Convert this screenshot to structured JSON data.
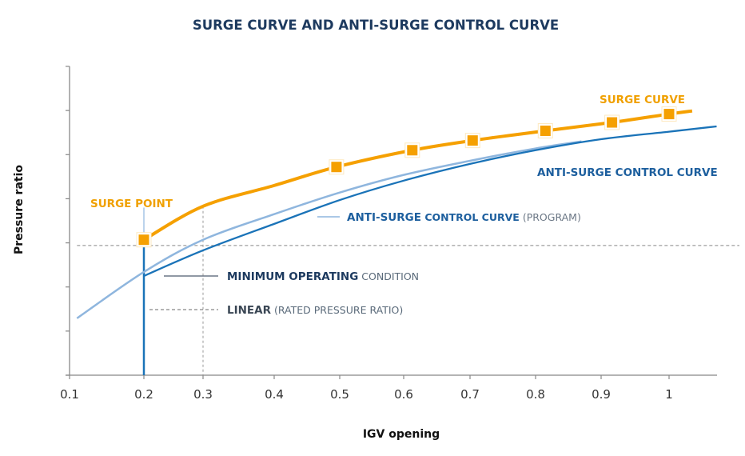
{
  "chart_data": {
    "type": "line",
    "title": "SURGE CURVE AND ANTI-SURGE CONTROL CURVE",
    "xlabel": "IGV opening",
    "ylabel": "Pressure ratio",
    "xticks": [
      "0.1",
      "0.2",
      "0.3",
      "0.4",
      "0.5",
      "0.6",
      "0.7",
      "0.8",
      "0.9",
      "1"
    ],
    "xlim": [
      0.1,
      1.07
    ],
    "ylim": [
      0,
      7
    ],
    "y_tick_count": 8,
    "grid": false,
    "colors": {
      "surge": "#f5a000",
      "anti_surge": "#1a73b8",
      "program": "#8fb6de",
      "label_dark": "#1d4f86",
      "label_grey": "#5a6a7a",
      "axis": "#888888"
    },
    "series": [
      {
        "name": "SURGE CURVE",
        "x": [
          0.2,
          0.3,
          0.4,
          0.495,
          0.613,
          0.704,
          0.815,
          0.916,
          1.0,
          1.034
        ],
        "y": [
          3.07,
          3.83,
          4.3,
          4.72,
          5.1,
          5.32,
          5.54,
          5.73,
          5.92,
          5.99
        ],
        "markers_x": [
          0.2,
          0.495,
          0.613,
          0.704,
          0.815,
          0.916,
          1.0
        ],
        "markers_y": [
          3.07,
          4.72,
          5.1,
          5.32,
          5.54,
          5.73,
          5.92
        ]
      },
      {
        "name": "ANTI-SURGE CONTROL CURVE",
        "x": [
          0.2,
          0.3,
          0.4,
          0.5,
          0.6,
          0.7,
          0.8,
          0.9,
          1.0,
          1.07
        ],
        "y": [
          2.25,
          2.83,
          3.43,
          3.97,
          4.41,
          4.79,
          5.1,
          5.35,
          5.52,
          5.64
        ]
      },
      {
        "name": "ANTI-SURGE CONTROL CURVE (PROGRAM)",
        "x": [
          0.11,
          0.2,
          0.3,
          0.4,
          0.5,
          0.6,
          0.7,
          0.8,
          0.87
        ],
        "y": [
          1.29,
          2.34,
          3.07,
          3.65,
          4.14,
          4.54,
          4.86,
          5.14,
          5.3
        ]
      }
    ],
    "reference_lines": {
      "rated_pressure_ratio_y": 2.94,
      "min_operating_x": 0.2,
      "linear_x": 0.3
    },
    "annotations": {
      "surge_point": "SURGE POINT",
      "surge_curve": "SURGE CURVE",
      "anti_surge": "ANTI-SURGE CONTROL CURVE",
      "program_bold": "ANTI-SURGE",
      "program_mid": " CONTROL CURVE",
      "program_tail": " (PROGRAM)",
      "min_bold": "MINIMUM OPERATING",
      "min_tail": " CONDITION",
      "linear_bold": "LINEAR",
      "linear_tail": " (RATED PRESSURE RATIO)"
    }
  }
}
